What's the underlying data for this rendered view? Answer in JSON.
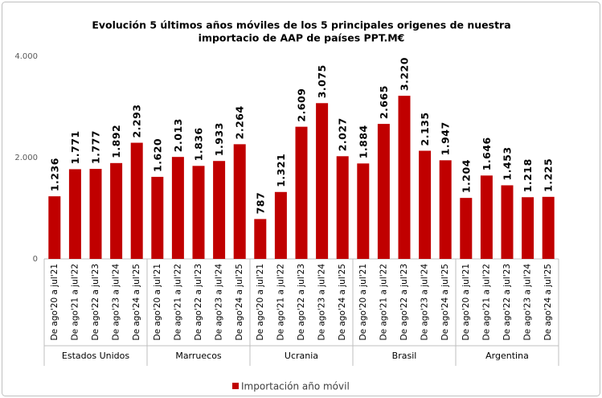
{
  "chart_data": {
    "type": "bar",
    "title": [
      "Evolución  5 últimos años móviles de los 5 principales  origenes de nuestra",
      "importacio  de AAP de países PPT.M€"
    ],
    "categories": [
      "De ago'20 a jul'21",
      "De ago'21 a jul'22",
      "De ago'22 a jul'23",
      "De ago'23 a jul'24",
      "De ago'24 a jul'25",
      "De ago'20 a jul'21",
      "De ago'21 a jul'22",
      "De ago'22 a jul'23",
      "De ago'23 a jul'24",
      "De ago'24 a jul'25",
      "De ago'20 a jul'21",
      "De ago'21 a jul'22",
      "De ago'22 a jul'23",
      "De ago'23 a jul'24",
      "De ago'24 a jul'25",
      "De ago'20 a jul'21",
      "De ago'21 a jul'22",
      "De ago'22 a jul'23",
      "De ago'23 a jul'24",
      "De ago'24 a jul'25",
      "De ago'20 a jul'21",
      "De ago'21 a jul'22",
      "De ago'22 a jul'23",
      "De ago'23 a jul'24",
      "De ago'24 a jul'25"
    ],
    "groups": [
      "Estados Unidos",
      "Marruecos",
      "Ucrania",
      "Brasil",
      "Argentina"
    ],
    "series": [
      {
        "name": "Importación año móvil",
        "color": "#c00000",
        "values": [
          1236,
          1771,
          1777,
          1892,
          2293,
          1620,
          2013,
          1836,
          1933,
          2264,
          787,
          1321,
          2609,
          3075,
          2027,
          1884,
          2665,
          3220,
          2135,
          1947,
          1204,
          1646,
          1453,
          1218,
          1225
        ],
        "value_labels": [
          "1.236",
          "1.771",
          "1.777",
          "1.892",
          "2.293",
          "1.620",
          "2.013",
          "1.836",
          "1.933",
          "2.264",
          "787",
          "1.321",
          "2.609",
          "3.075",
          "2.027",
          "1.884",
          "2.665",
          "3.220",
          "2.135",
          "1.947",
          "1.204",
          "1.646",
          "1.453",
          "1.218",
          "1.225"
        ]
      }
    ],
    "ylim": [
      0,
      4000
    ],
    "yticks": [
      0,
      {
        "value": 2000,
        "label": "2.000"
      },
      {
        "value": 4000,
        "label": "4.000"
      }
    ],
    "grid": false,
    "legend": "bottom"
  }
}
